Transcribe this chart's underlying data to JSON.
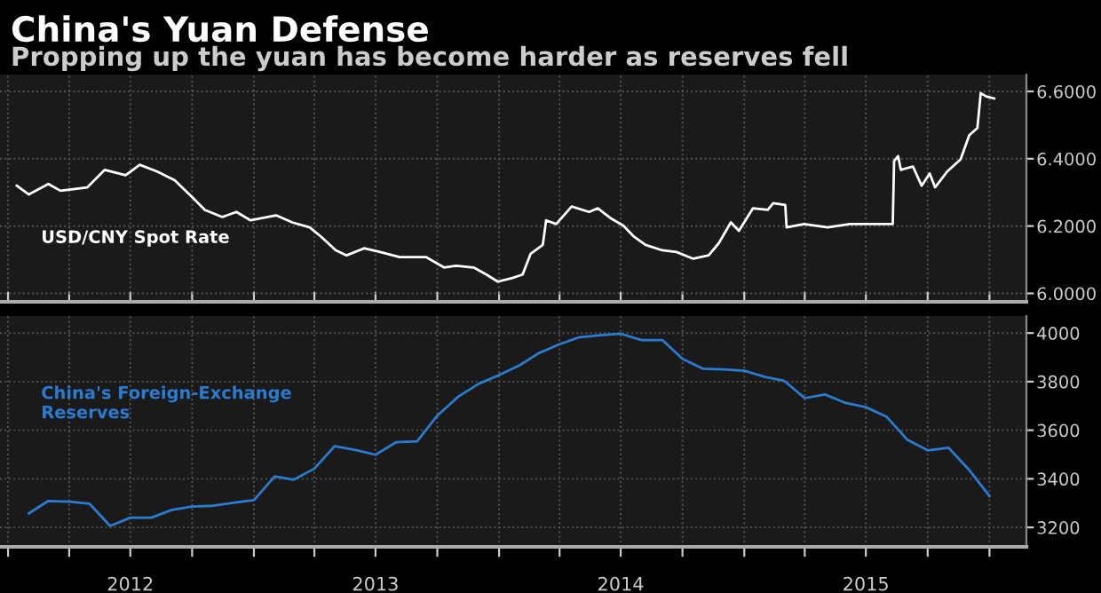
{
  "chart_data": [
    {
      "type": "line",
      "title": "China's Yuan Defense",
      "subtitle": "Propping up the yuan has become harder as reserves fell",
      "x": [
        "2012-01-14",
        "2012-02-01",
        "2012-03-01",
        "2012-03-19",
        "2012-04-28",
        "2012-05-24",
        "2012-06-24",
        "2012-07-15",
        "2012-08-10",
        "2012-09-05",
        "2012-10-02",
        "2012-10-20",
        "2012-11-15",
        "2012-12-06",
        "2012-12-27",
        "2013-02-03",
        "2013-02-27",
        "2013-03-25",
        "2013-04-10",
        "2013-05-03",
        "2013-05-19",
        "2013-06-14",
        "2013-07-08",
        "2013-08-06",
        "2013-09-14",
        "2013-10-11",
        "2013-10-29",
        "2013-11-24",
        "2013-12-13",
        "2013-12-30",
        "2014-01-21",
        "2014-02-05",
        "2014-02-17",
        "2014-03-07",
        "2014-03-12",
        "2014-03-27",
        "2014-04-19",
        "2014-05-15",
        "2014-05-28",
        "2014-06-17",
        "2014-07-05",
        "2014-07-20",
        "2014-08-07",
        "2014-09-01",
        "2014-09-22",
        "2014-10-17",
        "2014-11-09",
        "2014-11-24",
        "2014-12-12",
        "2014-12-24",
        "2015-01-14",
        "2015-02-05",
        "2015-02-13",
        "2015-03-03",
        "2015-03-05",
        "2015-03-31",
        "2015-05-05",
        "2015-06-07",
        "2015-07-03",
        "2015-08-10",
        "2015-08-12",
        "2015-08-18",
        "2015-08-22",
        "2015-09-09",
        "2015-09-22",
        "2015-10-04",
        "2015-10-12",
        "2015-10-30",
        "2015-11-19",
        "2015-12-02",
        "2015-12-14",
        "2015-12-19",
        "2015-12-27",
        "2016-01-08"
      ],
      "series": [
        {
          "name": "USD/CNY Spot Rate",
          "color": "#ffffff",
          "values": [
            6.32,
            6.294,
            6.325,
            6.305,
            6.315,
            6.367,
            6.351,
            6.382,
            6.362,
            6.336,
            6.284,
            6.248,
            6.227,
            6.242,
            6.217,
            6.232,
            6.211,
            6.196,
            6.17,
            6.128,
            6.113,
            6.134,
            6.123,
            6.108,
            6.108,
            6.077,
            6.082,
            6.077,
            6.056,
            6.035,
            6.046,
            6.056,
            6.118,
            6.144,
            6.217,
            6.206,
            6.258,
            6.242,
            6.253,
            6.222,
            6.201,
            6.17,
            6.144,
            6.128,
            6.123,
            6.103,
            6.113,
            6.149,
            6.211,
            6.186,
            6.253,
            6.248,
            6.268,
            6.263,
            6.196,
            6.206,
            6.196,
            6.206,
            6.206,
            6.206,
            6.393,
            6.408,
            6.367,
            6.377,
            6.32,
            6.356,
            6.315,
            6.362,
            6.398,
            6.47,
            6.491,
            6.595,
            6.585,
            6.579
          ]
        }
      ],
      "xlim": [
        "2011-12-20",
        "2016-02-25"
      ],
      "xticks": [
        {
          "value": "2012-01-01",
          "label": null
        },
        {
          "value": "2012-04-01",
          "label": null
        },
        {
          "value": "2012-07-01",
          "label": null
        },
        {
          "value": "2012-10-01",
          "label": null
        },
        {
          "value": "2013-01-01",
          "label": null
        },
        {
          "value": "2013-04-01",
          "label": null
        },
        {
          "value": "2013-07-01",
          "label": null
        },
        {
          "value": "2013-10-01",
          "label": null
        },
        {
          "value": "2014-01-01",
          "label": null
        },
        {
          "value": "2014-04-01",
          "label": null
        },
        {
          "value": "2014-07-01",
          "label": null
        },
        {
          "value": "2014-10-01",
          "label": null
        },
        {
          "value": "2015-01-01",
          "label": null
        },
        {
          "value": "2015-04-01",
          "label": null
        },
        {
          "value": "2015-07-01",
          "label": null
        },
        {
          "value": "2015-10-01",
          "label": null
        },
        {
          "value": "2016-01-01",
          "label": null
        }
      ],
      "ylim": [
        5.975,
        6.65
      ],
      "yticks": [
        {
          "value": 6.0,
          "label": "6.0000"
        },
        {
          "value": 6.2,
          "label": "6.2000"
        },
        {
          "value": 6.4,
          "label": "6.4000"
        },
        {
          "value": 6.6,
          "label": "6.6000"
        }
      ],
      "grid": true,
      "tick_labels": "y"
    },
    {
      "type": "line",
      "x": [
        "2012-02",
        "2012-03",
        "2012-04",
        "2012-05",
        "2012-06",
        "2012-07",
        "2012-08",
        "2012-09",
        "2012-10",
        "2012-11",
        "2012-12",
        "2013-01",
        "2013-02",
        "2013-03",
        "2013-04",
        "2013-05",
        "2013-06",
        "2013-07",
        "2013-08",
        "2013-09",
        "2013-10",
        "2013-11",
        "2013-12",
        "2014-01",
        "2014-02",
        "2014-03",
        "2014-04",
        "2014-05",
        "2014-06",
        "2014-07",
        "2014-08",
        "2014-09",
        "2014-10",
        "2014-11",
        "2014-12",
        "2015-01",
        "2015-02",
        "2015-03",
        "2015-04",
        "2015-05",
        "2015-06",
        "2015-07",
        "2015-08",
        "2015-09",
        "2015-10",
        "2015-11",
        "2015-12",
        "2016-01"
      ],
      "series": [
        {
          "name": "China's Foreign-Exchange\nReserves",
          "color": "#2b7bd0",
          "values": [
            3258,
            3309,
            3306,
            3298,
            3206,
            3240,
            3240,
            3272,
            3286,
            3289,
            3301,
            3312,
            3410,
            3396,
            3442,
            3534,
            3519,
            3499,
            3551,
            3554,
            3660,
            3738,
            3790,
            3827,
            3868,
            3917,
            3954,
            3983,
            3991,
            3997,
            3971,
            3971,
            3894,
            3853,
            3850,
            3845,
            3819,
            3804,
            3732,
            3747,
            3712,
            3695,
            3655,
            3560,
            3517,
            3528,
            3439,
            3329
          ]
        }
      ],
      "xlim": [
        "2011-12-20",
        "2016-02-25"
      ],
      "xticks": [
        {
          "value": "2012-01-01",
          "label": null
        },
        {
          "value": "2012-04-01",
          "label": null
        },
        {
          "value": "2012-07-01",
          "label": "2012"
        },
        {
          "value": "2012-10-01",
          "label": null
        },
        {
          "value": "2013-01-01",
          "label": null
        },
        {
          "value": "2013-04-01",
          "label": null
        },
        {
          "value": "2013-07-01",
          "label": "2013"
        },
        {
          "value": "2013-10-01",
          "label": null
        },
        {
          "value": "2014-01-01",
          "label": null
        },
        {
          "value": "2014-04-01",
          "label": null
        },
        {
          "value": "2014-07-01",
          "label": "2014"
        },
        {
          "value": "2014-10-01",
          "label": null
        },
        {
          "value": "2015-01-01",
          "label": null
        },
        {
          "value": "2015-04-01",
          "label": null
        },
        {
          "value": "2015-07-01",
          "label": "2015"
        },
        {
          "value": "2015-10-01",
          "label": null
        },
        {
          "value": "2016-01-01",
          "label": null
        }
      ],
      "ylim": [
        3120,
        4070
      ],
      "yticks": [
        3200,
        3400,
        3600,
        3800,
        4000
      ],
      "grid": true
    }
  ]
}
